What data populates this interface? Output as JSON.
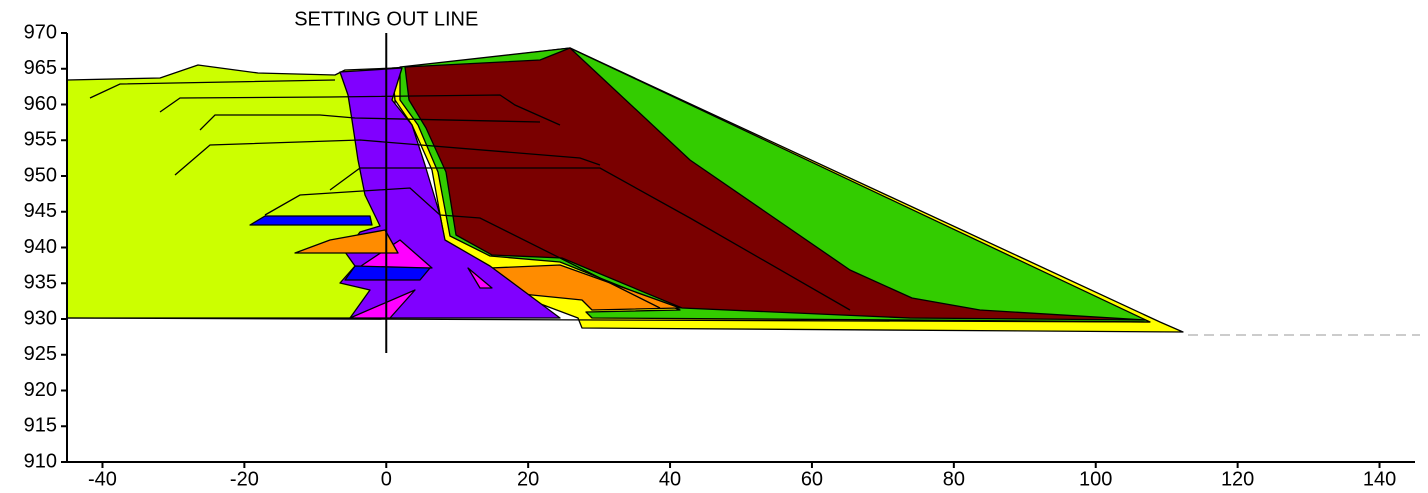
{
  "chart_data": {
    "type": "section",
    "annotation": {
      "text": "SETTING OUT LINE",
      "x": 0
    },
    "xlim": [
      -45,
      145
    ],
    "xticks": [
      -40,
      -20,
      0,
      20,
      40,
      60,
      80,
      100,
      120,
      140
    ],
    "ylim": [
      910,
      970
    ],
    "yticks": [
      910,
      915,
      920,
      925,
      930,
      935,
      940,
      945,
      950,
      955,
      960,
      965,
      970
    ]
  }
}
